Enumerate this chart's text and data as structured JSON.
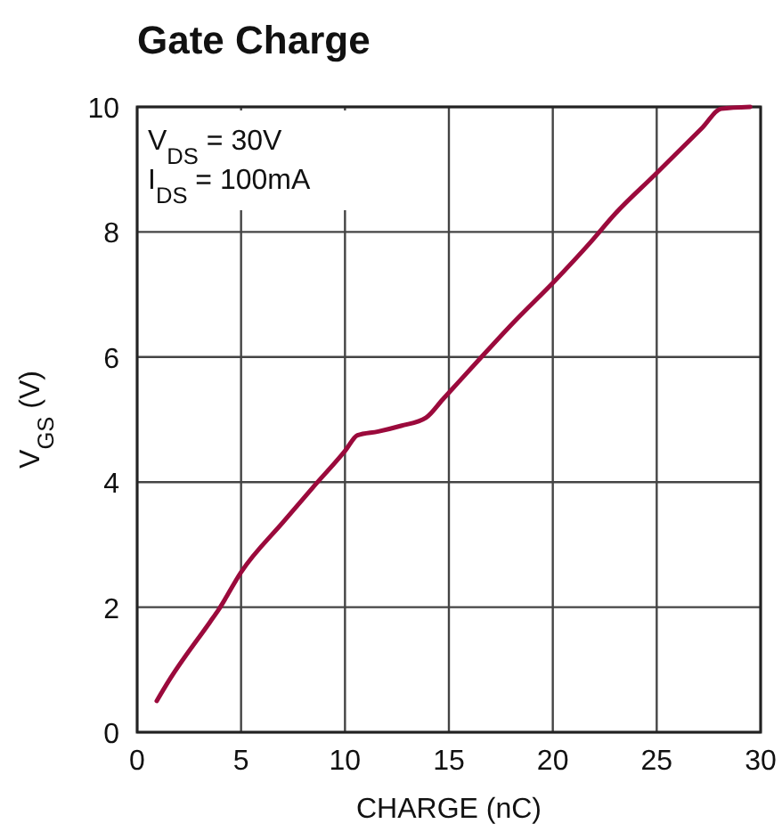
{
  "chart_data": {
    "type": "line",
    "title": "Gate Charge",
    "xlabel": "CHARGE (nC)",
    "ylabel": "V$_{GS}$ (V)",
    "annotations": [
      "V$_{DS}$ = 30V",
      "I$_{DS}$ = 100mA"
    ],
    "xlim": [
      0,
      30
    ],
    "xticks": [
      0,
      5,
      10,
      15,
      20,
      25,
      30
    ],
    "ylim": [
      0,
      10
    ],
    "yticks": [
      0,
      2,
      4,
      6,
      8,
      10
    ],
    "grid": true,
    "series": [
      {
        "color": "#9b0a3c",
        "x": [
          0.94,
          1.5,
          3.5,
          3.9,
          5,
          7.05,
          8.47,
          10.03,
          10.6,
          11.6,
          12.7,
          13.9,
          14.7,
          16.4,
          18.1,
          20.1,
          21.8,
          23,
          24.9,
          27.2,
          28.1,
          29.5
        ],
        "values": [
          0.5,
          0.81,
          1.76,
          1.95,
          2.56,
          3.37,
          3.92,
          4.51,
          4.75,
          4.81,
          4.9,
          5.03,
          5.32,
          5.94,
          6.55,
          7.22,
          7.83,
          8.29,
          8.91,
          9.67,
          9.97,
          10
        ]
      }
    ]
  }
}
